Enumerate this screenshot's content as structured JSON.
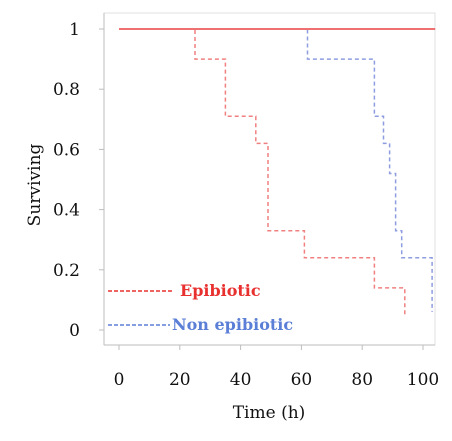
{
  "chart_data": {
    "type": "line",
    "xlabel": "Time (h)",
    "ylabel": "Surviving",
    "xlim": [
      0,
      100
    ],
    "ylim": [
      0,
      1
    ],
    "x_ticks": [
      0,
      20,
      40,
      60,
      80,
      100
    ],
    "y_ticks": [
      0,
      0.2,
      0.4,
      0.6,
      0.8,
      1
    ],
    "y_tick_labels": [
      "0",
      "0.2",
      "0.4",
      "0.6",
      "0.8",
      "1"
    ],
    "grid": false,
    "legend_placement": "bottom-left",
    "series": [
      {
        "name": "Epibiotic",
        "color": "#e8302f",
        "line_color": "#f08080",
        "dash": true,
        "x": [
          0,
          25,
          25,
          35,
          35,
          45,
          45,
          49,
          49,
          61,
          61,
          84,
          84,
          94,
          94
        ],
        "y": [
          1,
          1,
          0.9,
          0.9,
          0.71,
          0.71,
          0.62,
          0.62,
          0.33,
          0.33,
          0.24,
          0.24,
          0.14,
          0.14,
          0.05
        ]
      },
      {
        "name": "Non epibiotic",
        "color": "#5b7fd6",
        "line_color": "#8e9de0",
        "dash": true,
        "x": [
          0,
          62,
          62,
          84,
          84,
          87,
          87,
          89,
          89,
          91,
          91,
          93,
          93,
          103,
          103
        ],
        "y": [
          1,
          1,
          0.9,
          0.9,
          0.71,
          0.71,
          0.62,
          0.62,
          0.52,
          0.52,
          0.33,
          0.33,
          0.24,
          0.24,
          0.06
        ]
      },
      {
        "color": "#ef7070",
        "dash": false,
        "x": [
          0,
          104
        ],
        "y": [
          1,
          1
        ]
      }
    ]
  }
}
